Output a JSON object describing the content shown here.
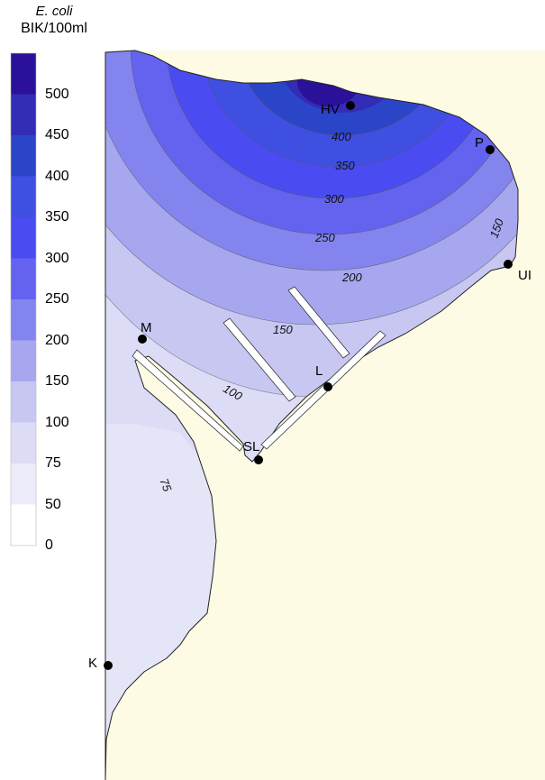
{
  "legend": {
    "title_italic": "E. coli",
    "title_unit": "BIK/100ml",
    "labels": [
      "500",
      "450",
      "400",
      "350",
      "300",
      "250",
      "200",
      "150",
      "100",
      "75",
      "50",
      "0"
    ],
    "bin_colors": [
      "#2b119a",
      "#322cb6",
      "#2b45c9",
      "#3f4fe2",
      "#4a4bf0",
      "#6363f0",
      "#8484ee",
      "#a7a7f0",
      "#c7c7f2",
      "#dcdcf6",
      "#ececfa",
      "#ffffff"
    ]
  },
  "map": {
    "land_color": "#fdfbe4",
    "sites": [
      "HV",
      "P",
      "UI",
      "M",
      "L",
      "SL",
      "K"
    ],
    "contour_labels": [
      "400",
      "350",
      "300",
      "250",
      "200",
      "150",
      "150",
      "100",
      "75"
    ]
  }
}
